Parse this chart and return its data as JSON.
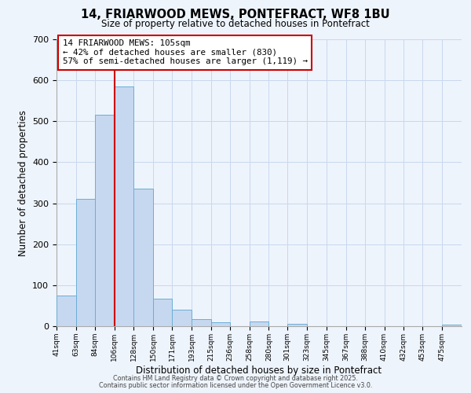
{
  "title": "14, FRIARWOOD MEWS, PONTEFRACT, WF8 1BU",
  "subtitle": "Size of property relative to detached houses in Pontefract",
  "xlabel": "Distribution of detached houses by size in Pontefract",
  "ylabel": "Number of detached properties",
  "bin_labels": [
    "41sqm",
    "63sqm",
    "84sqm",
    "106sqm",
    "128sqm",
    "150sqm",
    "171sqm",
    "193sqm",
    "215sqm",
    "236sqm",
    "258sqm",
    "280sqm",
    "301sqm",
    "323sqm",
    "345sqm",
    "367sqm",
    "388sqm",
    "410sqm",
    "432sqm",
    "453sqm",
    "475sqm"
  ],
  "bin_edges": [
    41,
    63,
    84,
    106,
    128,
    150,
    171,
    193,
    215,
    236,
    258,
    280,
    301,
    323,
    345,
    367,
    388,
    410,
    432,
    453,
    475
  ],
  "bar_values": [
    75,
    310,
    515,
    585,
    335,
    68,
    40,
    18,
    10,
    0,
    12,
    0,
    5,
    0,
    0,
    0,
    0,
    0,
    0,
    0,
    3
  ],
  "bar_color": "#c5d8f0",
  "bar_edge_color": "#6baed6",
  "property_line_x": 106,
  "annotation_title": "14 FRIARWOOD MEWS: 105sqm",
  "annotation_line1": "← 42% of detached houses are smaller (830)",
  "annotation_line2": "57% of semi-detached houses are larger (1,119) →",
  "annotation_box_color": "#ffffff",
  "annotation_box_edge": "#cc0000",
  "vline_color": "#cc0000",
  "ylim": [
    0,
    700
  ],
  "yticks": [
    0,
    100,
    200,
    300,
    400,
    500,
    600,
    700
  ],
  "footer1": "Contains HM Land Registry data © Crown copyright and database right 2025.",
  "footer2": "Contains public sector information licensed under the Open Government Licence v3.0.",
  "bg_color": "#eef4fc",
  "grid_color": "#c8d8ee"
}
